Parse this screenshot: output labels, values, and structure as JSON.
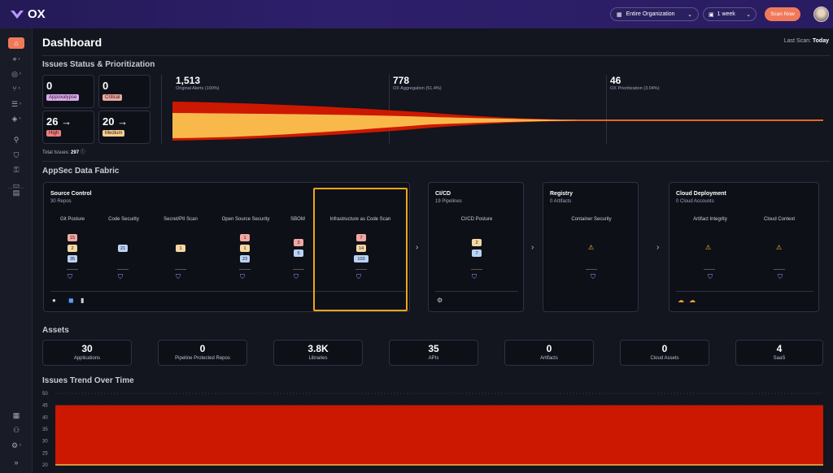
{
  "app": {
    "logo_text": "OX"
  },
  "header": {
    "org_select": "Entire Organization",
    "period_select": "1 week",
    "scan_button": "Scan Now"
  },
  "page": {
    "title": "Dashboard",
    "last_scan_label": "Last Scan:",
    "last_scan_value": "Today"
  },
  "issues": {
    "section_title": "Issues Status & Prioritization",
    "stats": [
      {
        "value": "0",
        "label": "Appoxalypse",
        "color": "#d8a8f0"
      },
      {
        "value": "0",
        "label": "Critical",
        "color": "#e8a8a0"
      },
      {
        "value": "26",
        "label": "High",
        "color": "#f08080"
      },
      {
        "value": "20",
        "label": "Medium",
        "color": "#f6d090"
      }
    ],
    "total_label": "Total Issues:",
    "total_value": "297",
    "funnel": [
      {
        "value": "1,513",
        "label": "Original Alerts (100%)"
      },
      {
        "value": "778",
        "label": "OX Aggregation (51.4%)"
      },
      {
        "value": "46",
        "label": "OX Prioritization (3.04%)"
      }
    ]
  },
  "fabric": {
    "section_title": "AppSec Data Fabric",
    "source_control": {
      "title": "Source Control",
      "subtitle": "30 Repos",
      "columns": [
        {
          "label": "Git Posture",
          "counts": [
            "15",
            "2",
            "35"
          ]
        },
        {
          "label": "Code Security",
          "counts": [
            "21"
          ]
        },
        {
          "label": "Secret/PII Scan",
          "counts": [
            "1"
          ]
        },
        {
          "label": "Open Source Security",
          "counts": [
            "1",
            "1",
            "23"
          ]
        },
        {
          "label": "SBOM",
          "counts": [
            "3",
            "5"
          ]
        },
        {
          "label": "Infrastructure as Code Scan",
          "counts": [
            "7",
            "14",
            "103"
          ]
        }
      ]
    },
    "cicd": {
      "title": "CI/CD",
      "subtitle": "19 Pipelines",
      "col": "CI/CD Posture",
      "counts": [
        "2",
        "7"
      ]
    },
    "registry": {
      "title": "Registry",
      "subtitle": "0 Artifacts",
      "col": "Container Security"
    },
    "cloud": {
      "title": "Cloud Deployment",
      "subtitle": "0 Cloud Accounts",
      "cols": [
        "Artifact Integrity",
        "Cloud Context"
      ]
    }
  },
  "assets": {
    "section_title": "Assets",
    "items": [
      {
        "value": "30",
        "label": "Applications"
      },
      {
        "value": "0",
        "label": "Pipeline Protected Repos"
      },
      {
        "value": "3.8K",
        "label": "Libraries"
      },
      {
        "value": "35",
        "label": "APIs"
      },
      {
        "value": "0",
        "label": "Artifacts"
      },
      {
        "value": "0",
        "label": "Cloud Assets"
      },
      {
        "value": "4",
        "label": "SaaS"
      }
    ]
  },
  "trend": {
    "section_title": "Issues Trend Over Time"
  },
  "chart_data": {
    "type": "area",
    "yticks": [
      "50",
      "45",
      "40",
      "35",
      "30",
      "25",
      "20"
    ],
    "ylim": [
      20,
      50
    ],
    "series": [
      {
        "color": "#cc1800",
        "values": [
          45,
          45,
          45,
          45,
          45,
          45,
          45,
          45
        ]
      }
    ]
  },
  "colors": {
    "accent": "#f0795a",
    "high": "#f08080",
    "critical_red": "#cc1800",
    "funnel_yellow": "#f9b94a"
  },
  "icons": [
    "home-icon",
    "gear-icon",
    "shield-icon",
    "warning-icon",
    "github-icon",
    "chevron-right-icon"
  ]
}
